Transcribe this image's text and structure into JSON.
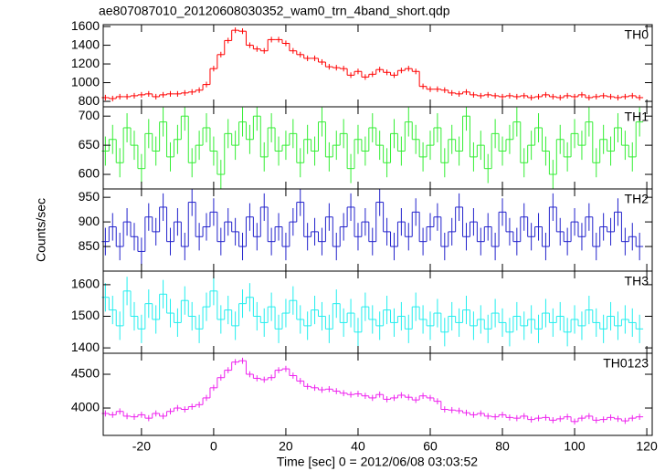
{
  "chart_data": {
    "type": "step",
    "title": "ae807087010_20120608030352_wam0_trn_4band_short.qdp",
    "xlabel": "Time [sec] 0 = 2012/06/08 03:03:52",
    "ylabel": "Counts/sec",
    "xlim": [
      -30.6,
      121.5
    ],
    "xticks": [
      -20,
      0,
      20,
      40,
      60,
      80,
      100,
      120
    ],
    "x": [
      -30,
      -28,
      -26,
      -24,
      -22,
      -20,
      -18,
      -16,
      -14,
      -12,
      -10,
      -8,
      -6,
      -4,
      -2,
      0,
      2,
      4,
      6,
      8,
      10,
      12,
      14,
      16,
      18,
      20,
      22,
      24,
      26,
      28,
      30,
      32,
      34,
      36,
      38,
      40,
      42,
      44,
      46,
      48,
      50,
      52,
      54,
      56,
      58,
      60,
      62,
      64,
      66,
      68,
      70,
      72,
      74,
      76,
      78,
      80,
      82,
      84,
      86,
      88,
      90,
      92,
      94,
      96,
      98,
      100,
      102,
      104,
      106,
      108,
      110,
      112,
      114,
      116,
      118
    ],
    "panels": [
      {
        "name": "TH0",
        "color": "#ff0000",
        "error": 30,
        "ylim": [
          742,
          1620
        ],
        "yticks": [
          800,
          1000,
          1200,
          1400,
          1600
        ],
        "values": [
          840,
          830,
          850,
          850,
          860,
          870,
          880,
          850,
          870,
          880,
          880,
          890,
          900,
          920,
          980,
          1150,
          1300,
          1450,
          1560,
          1550,
          1400,
          1360,
          1340,
          1460,
          1460,
          1420,
          1340,
          1300,
          1260,
          1260,
          1220,
          1170,
          1160,
          1150,
          1080,
          1120,
          1060,
          1090,
          1140,
          1110,
          1080,
          1130,
          1150,
          1120,
          960,
          930,
          930,
          920,
          890,
          880,
          900,
          870,
          860,
          870,
          860,
          850,
          860,
          850,
          860,
          840,
          850,
          870,
          850,
          840,
          860,
          850,
          870,
          840,
          850,
          860,
          850,
          840,
          850,
          860,
          840
        ]
      },
      {
        "name": "TH1",
        "color": "#33ee33",
        "error": 25,
        "ylim": [
          575,
          716
        ],
        "yticks": [
          600,
          650,
          700
        ],
        "values": [
          640,
          660,
          620,
          680,
          650,
          610,
          670,
          640,
          690,
          630,
          660,
          700,
          620,
          650,
          680,
          640,
          600,
          670,
          650,
          690,
          660,
          700,
          630,
          680,
          640,
          650,
          670,
          620,
          660,
          640,
          690,
          630,
          650,
          670,
          610,
          660,
          640,
          680,
          650,
          620,
          670,
          640,
          690,
          660,
          630,
          650,
          680,
          620,
          660,
          640,
          700,
          630,
          650,
          610,
          670,
          640,
          660,
          690,
          620,
          650,
          680,
          640,
          600,
          660,
          630,
          670,
          650,
          690,
          620,
          660,
          640,
          680,
          650,
          630,
          690
        ]
      },
      {
        "name": "TH2",
        "color": "#2222cc",
        "error": 28,
        "ylim": [
          800,
          967
        ],
        "yticks": [
          850,
          900,
          950
        ],
        "values": [
          860,
          890,
          850,
          900,
          870,
          840,
          910,
          880,
          930,
          860,
          900,
          850,
          940,
          870,
          890,
          920,
          860,
          900,
          880,
          850,
          910,
          870,
          930,
          860,
          890,
          850,
          900,
          940,
          870,
          880,
          860,
          910,
          850,
          890,
          930,
          870,
          900,
          860,
          940,
          880,
          850,
          900,
          870,
          920,
          860,
          890,
          910,
          850,
          880,
          930,
          870,
          900,
          860,
          890,
          850,
          920,
          880,
          860,
          910,
          870,
          890,
          850,
          930,
          880,
          860,
          900,
          870,
          910,
          850,
          890,
          880,
          920,
          860,
          870,
          850
        ]
      },
      {
        "name": "TH3",
        "color": "#22eeee",
        "error": 45,
        "ylim": [
          1383,
          1643
        ],
        "yticks": [
          1400,
          1500,
          1600
        ],
        "values": [
          1560,
          1520,
          1470,
          1580,
          1500,
          1460,
          1540,
          1490,
          1570,
          1510,
          1480,
          1550,
          1500,
          1460,
          1530,
          1580,
          1490,
          1520,
          1470,
          1540,
          1560,
          1500,
          1480,
          1530,
          1460,
          1510,
          1550,
          1490,
          1470,
          1520,
          1500,
          1460,
          1540,
          1480,
          1510,
          1450,
          1530,
          1490,
          1470,
          1520,
          1480,
          1500,
          1460,
          1530,
          1490,
          1470,
          1510,
          1450,
          1500,
          1480,
          1520,
          1470,
          1490,
          1460,
          1510,
          1480,
          1450,
          1500,
          1470,
          1490,
          1460,
          1510,
          1480,
          1500,
          1450,
          1490,
          1470,
          1520,
          1480,
          1460,
          1500,
          1470,
          1490,
          1480,
          1460
        ]
      },
      {
        "name": "TH0123",
        "color": "#ee22ee",
        "error": 45,
        "ylim": [
          3595,
          4811
        ],
        "yticks": [
          4000,
          4500
        ],
        "values": [
          3920,
          3900,
          3950,
          3880,
          3870,
          3900,
          3850,
          3920,
          3880,
          3950,
          4000,
          3980,
          4020,
          4050,
          4150,
          4300,
          4450,
          4560,
          4680,
          4700,
          4500,
          4440,
          4420,
          4450,
          4560,
          4580,
          4480,
          4400,
          4320,
          4300,
          4270,
          4280,
          4250,
          4220,
          4200,
          4210,
          4180,
          4150,
          4200,
          4130,
          4150,
          4190,
          4160,
          4120,
          4180,
          4150,
          4100,
          3980,
          3970,
          3960,
          3930,
          3900,
          3920,
          3880,
          3870,
          3900,
          3860,
          3850,
          3880,
          3830,
          3850,
          3860,
          3820,
          3840,
          3870,
          3800,
          3850,
          3880,
          3820,
          3830,
          3860,
          3840,
          3810,
          3850,
          3870
        ]
      }
    ]
  }
}
